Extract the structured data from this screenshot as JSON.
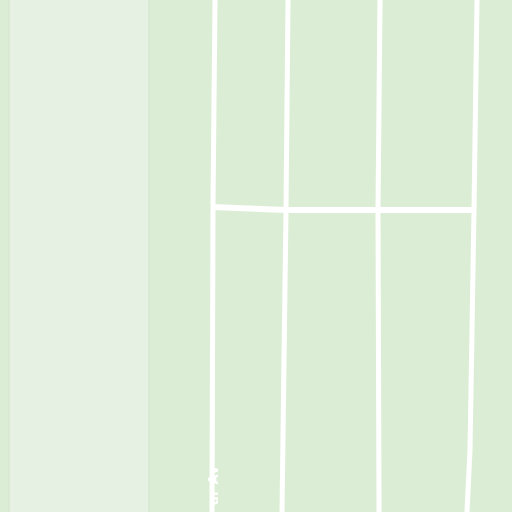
{
  "map": {
    "colors": {
      "land": "#dcedd6",
      "park_strip": "#e6f1e3",
      "strip_border": "#cfe4c8",
      "road": "#ffffff"
    },
    "street_labels": [
      {
        "id": "avenue-label",
        "text": "ar Av"
      }
    ]
  }
}
